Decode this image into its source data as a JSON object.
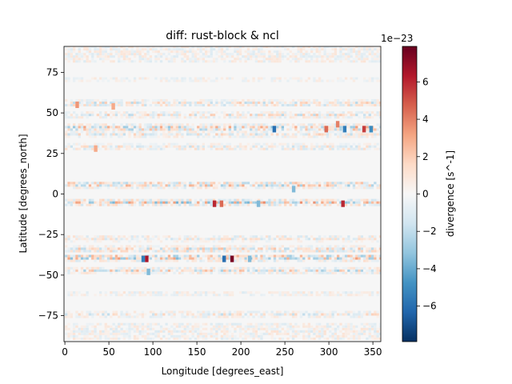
{
  "chart_data": {
    "type": "heatmap",
    "title": "diff: rust-block & ncl",
    "xlabel": "Longitude [degrees_east]",
    "ylabel": "Latitude [degrees_north]",
    "xlim": [
      -1,
      359
    ],
    "ylim": [
      -91,
      91
    ],
    "xticks": [
      0,
      50,
      100,
      150,
      200,
      250,
      300,
      350
    ],
    "yticks": [
      -75,
      -50,
      -25,
      0,
      25,
      50,
      75
    ],
    "colorbar": {
      "label": "divergence [s^-1]",
      "offset_text": "1e−23",
      "range": [
        -7.9,
        7.9
      ],
      "ticks": [
        6,
        4,
        2,
        0,
        -2,
        -4,
        -6
      ],
      "tick_labels": [
        "6",
        "4",
        "2",
        "0",
        "−2",
        "−4",
        "−6"
      ],
      "colormap": "RdBu_r"
    },
    "hotspots": [
      {
        "lon": 190,
        "lat": -40,
        "value": 7.5
      },
      {
        "lon": 181,
        "lat": -40,
        "value": -6.0
      },
      {
        "lon": 93,
        "lat": -40,
        "value": 6.5
      },
      {
        "lon": 89,
        "lat": -40,
        "value": -5.5
      },
      {
        "lon": 238,
        "lat": 40,
        "value": -6.0
      },
      {
        "lon": 318,
        "lat": 40,
        "value": -5.5
      },
      {
        "lon": 348,
        "lat": 40,
        "value": -5.0
      },
      {
        "lon": 340,
        "lat": 40,
        "value": 5.5
      },
      {
        "lon": 170,
        "lat": -6,
        "value": 6.0
      },
      {
        "lon": 178,
        "lat": -6,
        "value": 4.5
      },
      {
        "lon": 316,
        "lat": -6,
        "value": 6.0
      },
      {
        "lon": 310,
        "lat": 43,
        "value": 4.0
      },
      {
        "lon": 297,
        "lat": 40,
        "value": 4.5
      },
      {
        "lon": 14,
        "lat": 55,
        "value": 3.5
      },
      {
        "lon": 55,
        "lat": 54,
        "value": 3.0
      },
      {
        "lon": 35,
        "lat": 28,
        "value": 3.0
      },
      {
        "lon": 220,
        "lat": -6,
        "value": -3.5
      },
      {
        "lon": 260,
        "lat": 3,
        "value": -3.5
      },
      {
        "lon": 95,
        "lat": -48,
        "value": -3.5
      },
      {
        "lon": 210,
        "lat": -40,
        "value": -3.5
      }
    ]
  }
}
